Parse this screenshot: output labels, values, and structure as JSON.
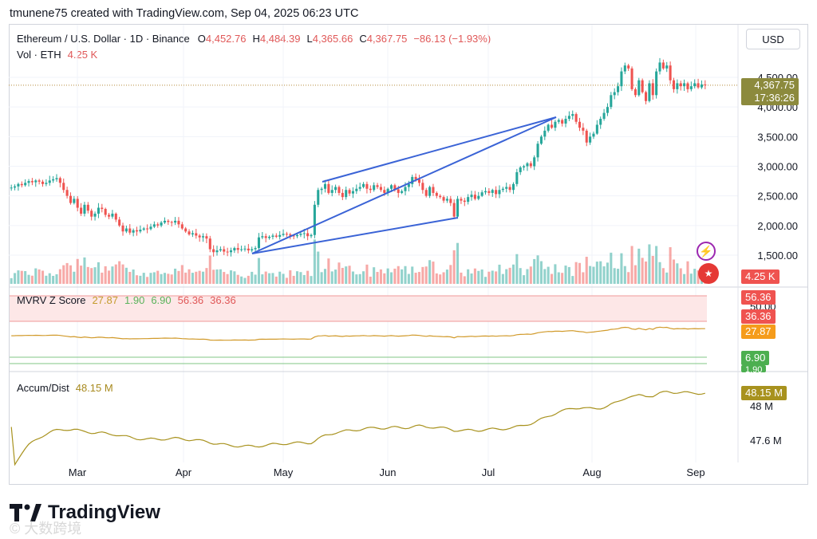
{
  "attribution": "tmunene75 created with TradingView.com, Sep 04, 2025 06:23 UTC",
  "brand": "TradingView",
  "watermark": "© 大数跨境",
  "currency_button": "USD",
  "legend": {
    "symbol": "Ethereum / U.S. Dollar · 1D · Binance",
    "open_label": "O",
    "open": "4,452.76",
    "high_label": "H",
    "high": "4,484.39",
    "low_label": "L",
    "low": "4,365.66",
    "close_label": "C",
    "close": "4,367.75",
    "change": "−86.13 (−1.93%)",
    "vol_label": "Vol · ETH",
    "vol": "4.25 K"
  },
  "price_tag": {
    "price": "4,367.75",
    "countdown": "17:36:26"
  },
  "vol_tag": "4.25 K",
  "mvrv": {
    "label": "MVRV Z Score",
    "values": [
      "27.87",
      "1.90",
      "6.90",
      "56.36",
      "36.36"
    ],
    "tags": [
      "56.36",
      "36.36",
      "27.87",
      "6.90",
      "1.90"
    ],
    "hidden_axis": "50.00"
  },
  "accum": {
    "label": "Accum/Dist",
    "value": "48.15 M",
    "tag": "48.15 M",
    "axis": [
      "48 M",
      "47.6 M"
    ]
  },
  "colors": {
    "up": "#26a69a",
    "down": "#ef5350",
    "trendline": "#3a63d6",
    "mvrv_line": "#d19a2a",
    "accum_line": "#a8921e",
    "price_tag": "#8c8a3d"
  },
  "chart_data": {
    "type": "candlestick",
    "title": "Ethereum / U.S. Dollar · 1D · Binance",
    "x_ticks": [
      "Mar",
      "Apr",
      "May",
      "Jun",
      "Jul",
      "Aug",
      "Sep"
    ],
    "y_ticks": [
      "4,500.00",
      "4,000.00",
      "3,500.00",
      "3,000.00",
      "2,500.00",
      "2,000.00",
      "1,500.00"
    ],
    "ylim": [
      1500,
      4800
    ],
    "close_series": [
      2640,
      2660,
      2700,
      2680,
      2720,
      2750,
      2730,
      2760,
      2740,
      2700,
      2720,
      2760,
      2780,
      2800,
      2720,
      2600,
      2500,
      2380,
      2450,
      2300,
      2200,
      2350,
      2250,
      2150,
      2200,
      2300,
      2280,
      2180,
      2150,
      2200,
      2100,
      2000,
      1900,
      1950,
      1880,
      1920,
      1900,
      1930,
      1950,
      1940,
      1980,
      2020,
      2000,
      2050,
      2080,
      2060,
      2050,
      2080,
      2020,
      1950,
      1900,
      1850,
      1870,
      1830,
      1800,
      1820,
      1780,
      1600,
      1550,
      1580,
      1600,
      1560,
      1550,
      1580,
      1620,
      1590,
      1600,
      1610,
      1580,
      1600,
      1620,
      1800,
      1820,
      1790,
      1810,
      1830,
      1810,
      1840,
      1860,
      1850,
      1830,
      1820,
      1840,
      1860,
      1870,
      1820,
      1840,
      2350,
      2600,
      2620,
      2700,
      2550,
      2600,
      2650,
      2550,
      2480,
      2600,
      2540,
      2580,
      2620,
      2650,
      2700,
      2620,
      2600,
      2680,
      2650,
      2600,
      2550,
      2620,
      2680,
      2610,
      2550,
      2580,
      2650,
      2700,
      2820,
      2780,
      2720,
      2600,
      2500,
      2650,
      2550,
      2500,
      2480,
      2420,
      2450,
      2380,
      2150,
      2450,
      2420,
      2400,
      2480,
      2520,
      2450,
      2500,
      2560,
      2580,
      2550,
      2600,
      2530,
      2600,
      2620,
      2650,
      2600,
      2700,
      2900,
      2980,
      3000,
      3050,
      3000,
      3150,
      3380,
      3500,
      3600,
      3700,
      3650,
      3750,
      3780,
      3720,
      3800,
      3850,
      3880,
      3750,
      3650,
      3600,
      3400,
      3500,
      3550,
      3700,
      3800,
      3900,
      4000,
      4200,
      4250,
      4350,
      4600,
      4700,
      4650,
      4300,
      4200,
      4450,
      4250,
      4100,
      4400,
      4200,
      4600,
      4750,
      4650,
      4700,
      4450,
      4300,
      4400,
      4350,
      4400,
      4300,
      4350,
      4400,
      4330,
      4380,
      4367.75
    ],
    "series": [
      {
        "name": "MVRV Z Score",
        "values": [
          27.87,
          1.9,
          6.9,
          56.36,
          36.36
        ]
      },
      {
        "name": "Accum/Dist",
        "value": "48.15 M"
      }
    ],
    "trendlines": [
      {
        "points": [
          [
            "Apr 22",
            1600
          ],
          [
            "Jul 24",
            3840
          ]
        ]
      },
      {
        "points": [
          [
            "May 11",
            2760
          ],
          [
            "Jun 24",
            2150
          ]
        ]
      }
    ]
  }
}
